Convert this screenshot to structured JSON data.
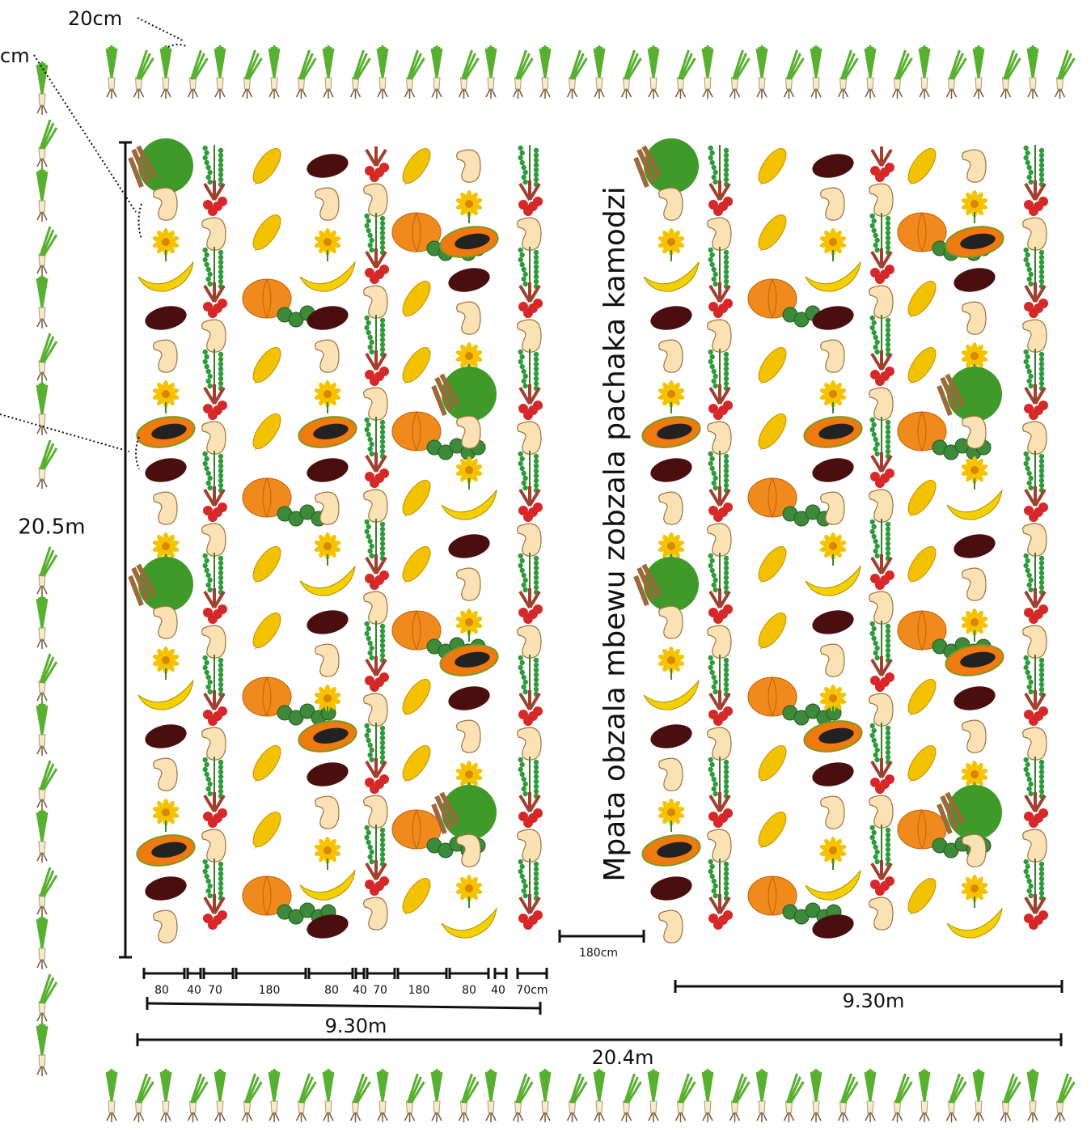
{
  "labels": {
    "top_spacing": "20cm",
    "left_spacing": "cm",
    "height": "20.5m",
    "title": "Mpata obzala mbewu zobzala pachaka kamodzi",
    "gap": "180cm",
    "block_width_left": "9.30m",
    "block_width_right": "9.30m",
    "total_width": "20.4m"
  },
  "row_spacings": [
    "80",
    "40",
    "70",
    "180",
    "80",
    "40",
    "70",
    "180",
    "80",
    "40",
    "70cm"
  ]
}
